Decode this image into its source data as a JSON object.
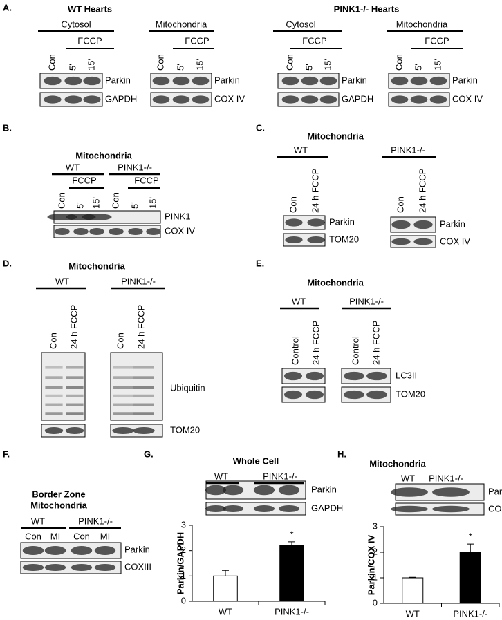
{
  "panels": [
    {
      "label": "A.",
      "titles": [
        "WT Hearts",
        "PINK1-/- Hearts"
      ],
      "groups": [
        {
          "header": "Cytosol",
          "treatment": "FCCP",
          "lanes": [
            "Con",
            "5'",
            "15'"
          ],
          "rows": [
            "Parkin",
            "GAPDH"
          ]
        },
        {
          "header": "Mitochondria",
          "treatment": "FCCP",
          "lanes": [
            "Con",
            "5'",
            "15'"
          ],
          "rows": [
            "Parkin",
            "COX IV"
          ]
        },
        {
          "header": "Cytosol",
          "treatment": "FCCP",
          "lanes": [
            "Con",
            "5'",
            "15'"
          ],
          "rows": [
            "Parkin",
            "GAPDH"
          ]
        },
        {
          "header": "Mitochondria",
          "treatment": "FCCP",
          "lanes": [
            "Con",
            "5'",
            "15'"
          ],
          "rows": [
            "Parkin",
            "COX IV"
          ]
        }
      ]
    },
    {
      "label": "B.",
      "titles": [
        "Mitochondria"
      ],
      "groups": [
        {
          "header": "WT",
          "treatment": "FCCP",
          "lanes": [
            "Con",
            "5'",
            "15'"
          ],
          "rows": [
            "PINK1",
            "COX IV"
          ]
        },
        {
          "header": "PINK1-/-",
          "treatment": "FCCP",
          "lanes": [
            "Con",
            "5'",
            "15'"
          ]
        }
      ]
    },
    {
      "label": "C.",
      "titles": [
        "Mitochondria"
      ],
      "groups": [
        {
          "header": "WT",
          "lanes": [
            "Con",
            "24 h FCCP"
          ],
          "rows": [
            "Parkin",
            "TOM20"
          ]
        },
        {
          "header": "PINK1-/-",
          "lanes": [
            "Con",
            "24 h FCCP"
          ],
          "rows": [
            "Parkin",
            "COX IV"
          ]
        }
      ]
    },
    {
      "label": "D.",
      "titles": [
        "Mitochondria"
      ],
      "groups": [
        {
          "header": "WT",
          "lanes": [
            "Con",
            "24 h FCCP"
          ]
        },
        {
          "header": "PINK1-/-",
          "lanes": [
            "Con",
            "24 h FCCP"
          ],
          "rows": [
            "Ubiquitin",
            "TOM20"
          ]
        }
      ]
    },
    {
      "label": "E.",
      "titles": [
        "Mitochondria"
      ],
      "groups": [
        {
          "header": "WT",
          "lanes": [
            "Control",
            "24 h FCCP"
          ]
        },
        {
          "header": "PINK1-/-",
          "lanes": [
            "Control",
            "24 h FCCP"
          ],
          "rows": [
            "LC3II",
            "TOM20"
          ]
        }
      ]
    },
    {
      "label": "F.",
      "titles": [
        "Border Zone",
        "Mitochondria"
      ],
      "groups": [
        {
          "header": "WT",
          "lanes": [
            "Con",
            "MI"
          ],
          "rows": [
            "Parkin",
            "COXIII"
          ]
        },
        {
          "header": "PINK1-/-",
          "lanes": [
            "Con",
            "MI"
          ]
        }
      ]
    },
    {
      "label": "G.",
      "titles": [
        "Whole Cell"
      ],
      "groups": [
        {
          "header": "WT",
          "rows": [
            "Parkin",
            "GAPDH"
          ]
        },
        {
          "header": "PINK1-/-"
        }
      ]
    },
    {
      "label": "H.",
      "titles": [
        "Mitochondria"
      ],
      "groups": [
        {
          "header": "WT",
          "rows": [
            "Parkin",
            "COX IV"
          ]
        },
        {
          "header": "PINK1-/-"
        }
      ]
    }
  ],
  "chart_data": [
    {
      "type": "bar",
      "y_label": "Parkin/GAPDH",
      "categories": [
        "WT",
        "PINK1-/-"
      ],
      "values": [
        1,
        2.22
      ],
      "errors": [
        0.22,
        0.13
      ],
      "colors": [
        "#ffffff",
        "#000000"
      ],
      "ylim": [
        0,
        3
      ],
      "yticks": [
        0,
        1,
        2,
        3
      ],
      "annotation": "*"
    },
    {
      "type": "bar",
      "y_label": "Parkin/COX IV",
      "categories": [
        "WT",
        "PINK1-/-"
      ],
      "values": [
        1,
        2.0
      ],
      "errors": [
        0.02,
        0.32
      ],
      "colors": [
        "#ffffff",
        "#000000"
      ],
      "ylim": [
        0,
        3
      ],
      "yticks": [
        0,
        1,
        2,
        3
      ],
      "annotation": "*"
    }
  ]
}
